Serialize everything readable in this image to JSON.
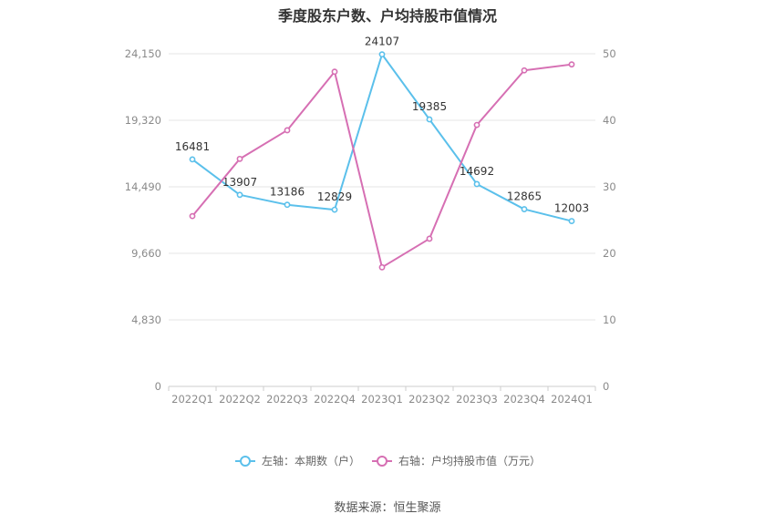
{
  "title": "季度股东户数、户均持股市值情况",
  "source": "数据来源：恒生聚源",
  "colors": {
    "left_series": "#5bc0eb",
    "right_series": "#d66fb3",
    "grid": "#e6e6e6",
    "axis_text": "#8a8a8a"
  },
  "chart_data": {
    "type": "line",
    "title": "季度股东户数、户均持股市值情况",
    "categories": [
      "2022Q1",
      "2022Q2",
      "2022Q3",
      "2022Q4",
      "2023Q1",
      "2023Q2",
      "2023Q3",
      "2023Q4",
      "2024Q1"
    ],
    "series": [
      {
        "name": "左轴：本期数（户）",
        "axis": "left",
        "values": [
          16481,
          13907,
          13186,
          12829,
          24107,
          19385,
          14692,
          12865,
          12003
        ],
        "data_labels": [
          "16481",
          "13907",
          "13186",
          "12829",
          "24107",
          "19385",
          "14692",
          "12865",
          "12003"
        ]
      },
      {
        "name": "右轴：户均持股市值（万元）",
        "axis": "right",
        "values": [
          25.6,
          34.2,
          38.5,
          47.3,
          17.9,
          22.2,
          39.3,
          47.5,
          48.4
        ]
      }
    ],
    "y_left": {
      "ylim": [
        0,
        24150
      ],
      "ticks": [
        0,
        4830,
        9660,
        14490,
        19320,
        24150
      ],
      "tick_labels": [
        "0",
        "4,830",
        "9,660",
        "14,490",
        "19,320",
        "24,150"
      ]
    },
    "y_right": {
      "ylim": [
        0,
        50
      ],
      "ticks": [
        0,
        10,
        20,
        30,
        40,
        50
      ],
      "tick_labels": [
        "0",
        "10",
        "20",
        "30",
        "40",
        "50"
      ]
    },
    "grid": true,
    "legend": "bottom-center"
  }
}
